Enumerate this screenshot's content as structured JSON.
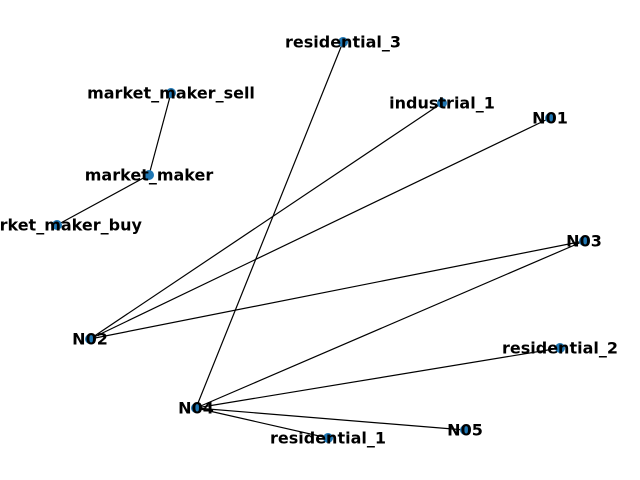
{
  "colors": {
    "node": "#1f77b4",
    "edge": "#000000"
  },
  "nodes": [
    {
      "id": "residential_3",
      "label": "residential_3"
    },
    {
      "id": "market_maker_sell",
      "label": "market_maker_sell"
    },
    {
      "id": "industrial_1",
      "label": "industrial_1"
    },
    {
      "id": "N01",
      "label": "N01"
    },
    {
      "id": "market_maker",
      "label": "market_maker"
    },
    {
      "id": "market_maker_buy",
      "label": "market_maker_buy"
    },
    {
      "id": "N03",
      "label": "N03"
    },
    {
      "id": "N02",
      "label": "N02"
    },
    {
      "id": "residential_2",
      "label": "residential_2"
    },
    {
      "id": "N04",
      "label": "N04"
    },
    {
      "id": "N05",
      "label": "N05"
    },
    {
      "id": "residential_1",
      "label": "residential_1"
    }
  ],
  "edges": [
    [
      "market_maker_sell",
      "market_maker"
    ],
    [
      "market_maker",
      "market_maker_buy"
    ],
    [
      "residential_3",
      "N04"
    ],
    [
      "industrial_1",
      "N02"
    ],
    [
      "N01",
      "N02"
    ],
    [
      "N03",
      "N02"
    ],
    [
      "N03",
      "N04"
    ],
    [
      "residential_2",
      "N04"
    ],
    [
      "N04",
      "N05"
    ],
    [
      "N04",
      "residential_1"
    ]
  ]
}
